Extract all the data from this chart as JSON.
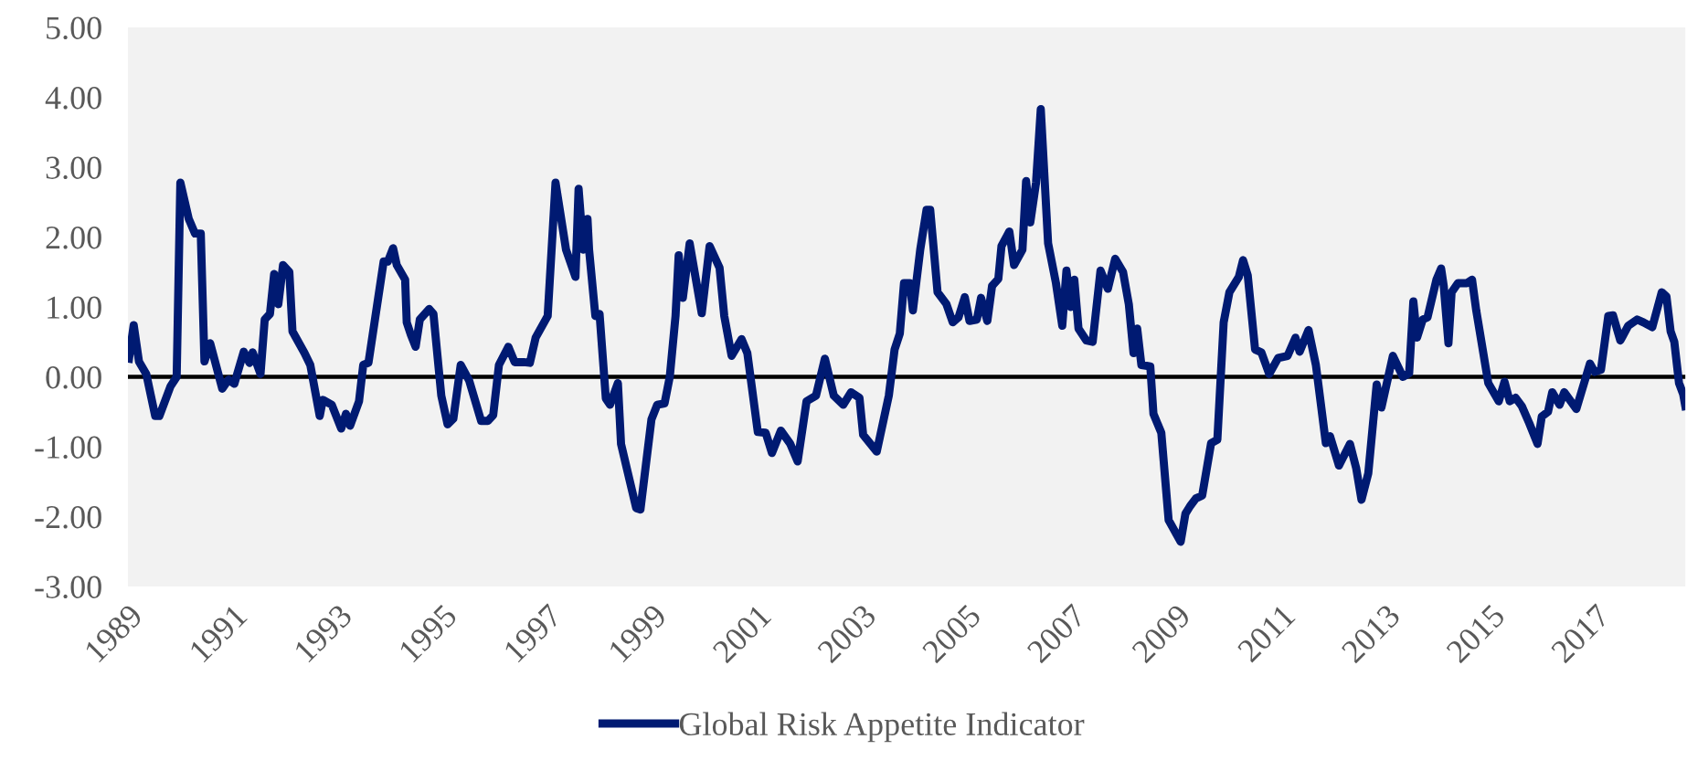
{
  "chart_data": {
    "type": "line",
    "x": [
      1989.02,
      1989.11,
      1989.21,
      1989.35,
      1989.52,
      1989.6,
      1989.81,
      1989.93,
      1990.0,
      1990.16,
      1990.28,
      1990.39,
      1990.46,
      1990.57,
      1990.8,
      1990.92,
      1991.03,
      1991.21,
      1991.32,
      1991.38,
      1991.53,
      1991.61,
      1991.71,
      1991.79,
      1991.87,
      1991.96,
      1992.08,
      1992.14,
      1992.37,
      1992.48,
      1992.66,
      1992.72,
      1992.89,
      1993.07,
      1993.16,
      1993.24,
      1993.41,
      1993.49,
      1993.59,
      1993.88,
      1993.96,
      1994.06,
      1994.13,
      1994.29,
      1994.32,
      1994.4,
      1994.49,
      1994.57,
      1994.75,
      1994.83,
      1994.98,
      1995.1,
      1995.21,
      1995.35,
      1995.51,
      1995.74,
      1995.87,
      1995.97,
      1996.08,
      1996.26,
      1996.38,
      1996.55,
      1996.67,
      1996.78,
      1997.01,
      1997.16,
      1997.36,
      1997.54,
      1997.6,
      1997.69,
      1997.77,
      1997.8,
      1997.92,
      1998.0,
      1998.12,
      1998.2,
      1998.35,
      1998.41,
      1998.52,
      1998.7,
      1998.78,
      1998.99,
      1999.1,
      1999.24,
      1999.34,
      1999.45,
      1999.51,
      1999.59,
      1999.72,
      1999.86,
      1999.95,
      2000.1,
      2000.29,
      2000.38,
      2000.52,
      2000.71,
      2000.82,
      2001.02,
      2001.17,
      2001.29,
      2001.46,
      2001.64,
      2001.78,
      2001.95,
      2002.13,
      2002.3,
      2002.47,
      2002.65,
      2002.8,
      2002.96,
      2003.03,
      2003.29,
      2003.52,
      2003.63,
      2003.73,
      2003.81,
      2003.92,
      2003.98,
      2004.12,
      2004.24,
      2004.31,
      2004.45,
      2004.62,
      2004.74,
      2004.85,
      2004.97,
      2005.06,
      2005.2,
      2005.28,
      2005.4,
      2005.49,
      2005.61,
      2005.67,
      2005.82,
      2005.91,
      2006.07,
      2006.14,
      2006.22,
      2006.33,
      2006.42,
      2006.56,
      2006.71,
      2006.83,
      2006.91,
      2006.99,
      2007.06,
      2007.14,
      2007.29,
      2007.41,
      2007.56,
      2007.7,
      2007.84,
      2007.99,
      2008.1,
      2008.19,
      2008.26,
      2008.34,
      2008.51,
      2008.57,
      2008.72,
      2008.86,
      2009.09,
      2009.18,
      2009.27,
      2009.38,
      2009.5,
      2009.67,
      2009.79,
      2009.91,
      2010.02,
      2010.2,
      2010.28,
      2010.37,
      2010.51,
      2010.63,
      2010.78,
      2010.95,
      2011.13,
      2011.28,
      2011.36,
      2011.53,
      2011.67,
      2011.86,
      2011.94,
      2012.11,
      2012.32,
      2012.44,
      2012.54,
      2012.67,
      2012.83,
      2012.92,
      2013.14,
      2013.33,
      2013.45,
      2013.53,
      2013.6,
      2013.71,
      2013.8,
      2013.97,
      2014.06,
      2014.11,
      2014.2,
      2014.26,
      2014.38,
      2014.55,
      2014.65,
      2014.73,
      2014.96,
      2015.16,
      2015.27,
      2015.37,
      2015.48,
      2015.6,
      2015.74,
      2015.9,
      2015.98,
      2016.1,
      2016.18,
      2016.32,
      2016.41,
      2016.64,
      2016.9,
      2016.99,
      2017.11,
      2017.25,
      2017.34,
      2017.48,
      2017.63,
      2017.8,
      2017.92,
      2018.09,
      2018.27,
      2018.36,
      2018.44,
      2018.51,
      2018.6,
      2018.68,
      2018.72
    ],
    "series": [
      {
        "name": "Global Risk Appetite Indicator",
        "color": "#001a72",
        "values": [
          0.26,
          0.74,
          0.22,
          0.04,
          -0.56,
          -0.56,
          -0.14,
          0.0,
          2.78,
          2.26,
          2.05,
          2.05,
          0.22,
          0.48,
          -0.17,
          -0.04,
          -0.1,
          0.36,
          0.2,
          0.35,
          0.04,
          0.82,
          0.9,
          1.47,
          1.04,
          1.6,
          1.5,
          0.65,
          0.34,
          0.17,
          -0.56,
          -0.33,
          -0.4,
          -0.74,
          -0.53,
          -0.7,
          -0.35,
          0.17,
          0.2,
          1.65,
          1.65,
          1.84,
          1.6,
          1.39,
          0.78,
          0.6,
          0.43,
          0.82,
          0.97,
          0.9,
          -0.27,
          -0.68,
          -0.6,
          0.17,
          -0.05,
          -0.63,
          -0.63,
          -0.55,
          0.17,
          0.43,
          0.21,
          0.21,
          0.2,
          0.56,
          0.87,
          2.78,
          1.82,
          1.43,
          2.69,
          1.82,
          2.26,
          1.82,
          0.87,
          0.9,
          -0.31,
          -0.4,
          -0.09,
          -0.96,
          -1.31,
          -1.88,
          -1.9,
          -0.61,
          -0.4,
          -0.38,
          0.0,
          0.87,
          1.74,
          1.13,
          1.91,
          1.3,
          0.91,
          1.87,
          1.56,
          0.87,
          0.3,
          0.54,
          0.34,
          -0.79,
          -0.8,
          -1.09,
          -0.77,
          -0.96,
          -1.21,
          -0.35,
          -0.27,
          0.26,
          -0.27,
          -0.4,
          -0.22,
          -0.3,
          -0.83,
          -1.07,
          -0.27,
          0.39,
          0.62,
          1.34,
          1.34,
          0.95,
          1.82,
          2.39,
          2.39,
          1.21,
          1.04,
          0.78,
          0.85,
          1.14,
          0.8,
          0.82,
          1.13,
          0.8,
          1.3,
          1.4,
          1.87,
          2.08,
          1.6,
          1.82,
          2.8,
          2.21,
          2.78,
          3.83,
          1.91,
          1.34,
          0.73,
          1.52,
          1.0,
          1.39,
          0.69,
          0.52,
          0.5,
          1.52,
          1.26,
          1.69,
          1.5,
          1.04,
          0.34,
          0.69,
          0.17,
          0.15,
          -0.53,
          -0.8,
          -2.05,
          -2.36,
          -1.96,
          -1.85,
          -1.74,
          -1.7,
          -0.95,
          -0.9,
          0.78,
          1.21,
          1.43,
          1.67,
          1.45,
          0.39,
          0.35,
          0.04,
          0.27,
          0.3,
          0.56,
          0.36,
          0.67,
          0.17,
          -0.95,
          -0.85,
          -1.27,
          -0.96,
          -1.31,
          -1.76,
          -1.38,
          -0.11,
          -0.44,
          0.3,
          0.0,
          0.05,
          1.08,
          0.56,
          0.82,
          0.85,
          1.39,
          1.55,
          1.3,
          0.48,
          1.21,
          1.34,
          1.34,
          1.39,
          0.95,
          -0.09,
          -0.35,
          -0.07,
          -0.35,
          -0.3,
          -0.42,
          -0.66,
          -0.96,
          -0.57,
          -0.5,
          -0.22,
          -0.4,
          -0.22,
          -0.46,
          0.19,
          0.07,
          0.1,
          0.87,
          0.88,
          0.52,
          0.73,
          0.82,
          0.78,
          0.71,
          1.21,
          1.15,
          0.65,
          0.5,
          -0.09,
          -0.25,
          -0.42
        ]
      }
    ],
    "xlim": [
      1989,
      2018.72
    ],
    "xticks": [
      1989,
      1991,
      1993,
      1995,
      1997,
      1999,
      2001,
      2003,
      2005,
      2007,
      2009,
      2011,
      2013,
      2015,
      2017
    ],
    "ylim": [
      -3,
      5
    ],
    "yticks": [
      {
        "value": -3,
        "label": "-3.00"
      },
      {
        "value": -2,
        "label": "-2.00"
      },
      {
        "value": -1,
        "label": "-1.00"
      },
      {
        "value": 0,
        "label": "0.00"
      },
      {
        "value": 1,
        "label": "1.00"
      },
      {
        "value": 2,
        "label": "2.00"
      },
      {
        "value": 3,
        "label": "3.00"
      },
      {
        "value": 4,
        "label": "4.00"
      },
      {
        "value": 5,
        "label": "5.00"
      }
    ],
    "ref_lines": [
      {
        "axis": "y",
        "value": 0,
        "color": "#000000"
      }
    ],
    "grid": false,
    "legend": "bottom",
    "marker": "none",
    "line_style": "solid"
  }
}
